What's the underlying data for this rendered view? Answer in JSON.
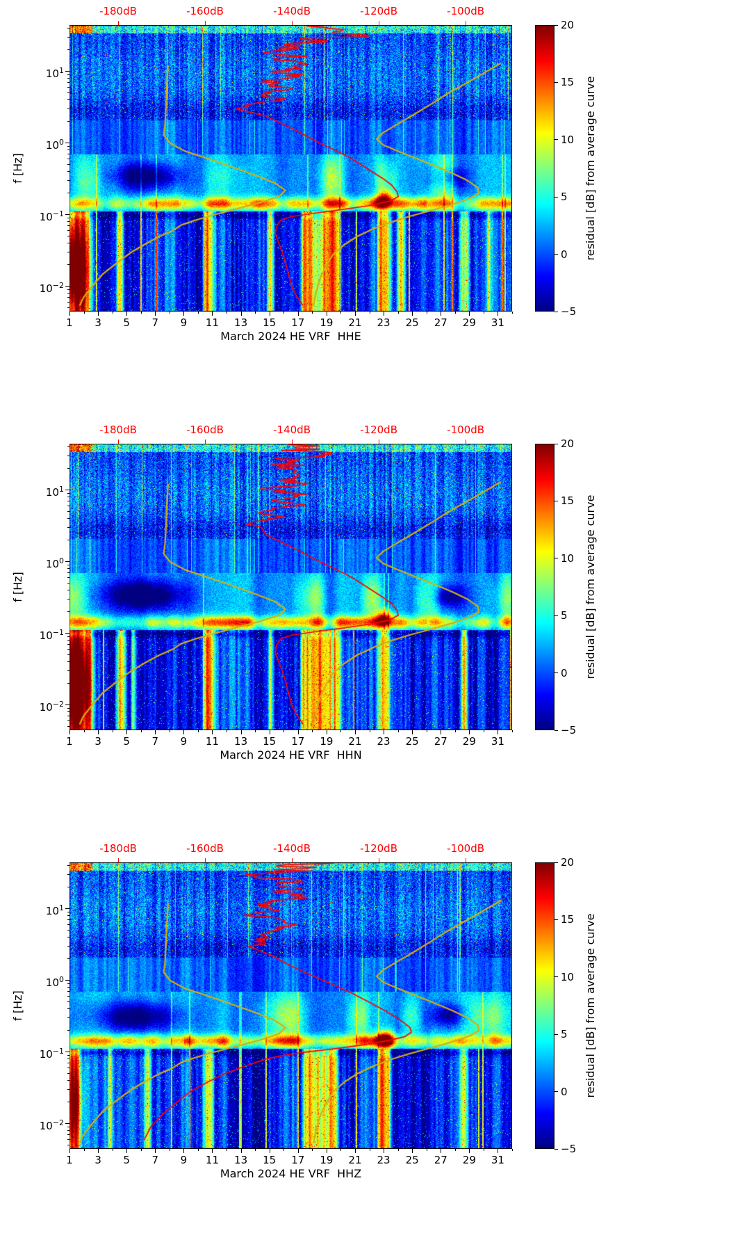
{
  "figure": {
    "month_label": "March 2024",
    "station_label": "HE VRF",
    "channels": [
      "HHE",
      "HHN",
      "HHZ"
    ],
    "background": "#ffffff"
  },
  "chart_data": [
    {
      "type": "heatmap",
      "channel": "HHE",
      "xlabel": "March 2024 HE VRF  HHE",
      "ylabel": "f [Hz]",
      "x_ticks": [
        1,
        3,
        5,
        7,
        9,
        11,
        13,
        15,
        17,
        19,
        21,
        23,
        25,
        27,
        29,
        31
      ],
      "x_range": [
        1,
        32
      ],
      "y_scale": "log",
      "y_range_hz": [
        0.0045,
        44.7
      ],
      "y_ticks": [
        {
          "f": 10,
          "label": "10^1"
        },
        {
          "f": 1,
          "label": "10^0"
        },
        {
          "f": 0.1,
          "label": "10^-1"
        },
        {
          "f": 0.01,
          "label": "10^-2"
        }
      ],
      "colormap": "jet",
      "colorbar": {
        "label": "residual [dB] from average curve",
        "ticks": [
          20,
          15,
          10,
          5,
          0,
          -5
        ],
        "range": [
          -5,
          20
        ]
      },
      "top_axis": {
        "labels": [
          "-180dB",
          "-160dB",
          "-140dB",
          "-120dB",
          "-100dB"
        ],
        "values_db": [
          -180,
          -160,
          -140,
          -120,
          -100
        ],
        "range_db": [
          -191.2,
          -89.3
        ],
        "color": "#ff0000"
      },
      "curves": {
        "average_psd": "avg_psd_horizontal",
        "noise_models": [
          "nlnm",
          "nhnm"
        ]
      },
      "features": {
        "noisy_day_ranges": [
          [
            0.6,
            2.5
          ],
          [
            4.3,
            4.8
          ],
          [
            10.4,
            11.1
          ],
          [
            14.9,
            15.2
          ],
          [
            17.2,
            19.9
          ],
          [
            22.6,
            23.5
          ],
          [
            24.0,
            24.4
          ],
          [
            28.3,
            28.9
          ],
          [
            30.2,
            30.5
          ]
        ],
        "microseism_blob": {
          "day": 23.1,
          "freq_hz": 0.16
        },
        "quiet_patch": {
          "days": [
            3,
            9.5
          ],
          "freq_hz": [
            0.2,
            0.6
          ]
        },
        "quiet_patch2": {
          "days": [
            26,
            29
          ],
          "freq_hz": [
            0.22,
            0.5
          ]
        },
        "left_blob": {
          "day": 1.3,
          "day_sigma": 0.9,
          "freq_hz": 0.018,
          "amp": 14
        },
        "description": "East component residual spectrogram: strong red low-frequency noise columns on days 1-2, 18-20, 23, 28-29; bright microseism band near 0.15 Hz with intense red spot on day 23; quiet dark-blue patch 0.2-0.6 Hz on days 3-9."
      }
    },
    {
      "type": "heatmap",
      "channel": "HHN",
      "xlabel": "March 2024 HE VRF  HHN",
      "ylabel": "f [Hz]",
      "x_ticks": [
        1,
        3,
        5,
        7,
        9,
        11,
        13,
        15,
        17,
        19,
        21,
        23,
        25,
        27,
        29,
        31
      ],
      "x_range": [
        1,
        32
      ],
      "y_scale": "log",
      "y_range_hz": [
        0.0045,
        44.7
      ],
      "y_ticks": [
        {
          "f": 10,
          "label": "10^1"
        },
        {
          "f": 1,
          "label": "10^0"
        },
        {
          "f": 0.1,
          "label": "10^-1"
        },
        {
          "f": 0.01,
          "label": "10^-2"
        }
      ],
      "colormap": "jet",
      "colorbar": {
        "label": "residual [dB] from average curve",
        "ticks": [
          20,
          15,
          10,
          5,
          0,
          -5
        ],
        "range": [
          -5,
          20
        ]
      },
      "top_axis": {
        "labels": [
          "-180dB",
          "-160dB",
          "-140dB",
          "-120dB",
          "-100dB"
        ],
        "values_db": [
          -180,
          -160,
          -140,
          -120,
          -100
        ],
        "range_db": [
          -191.2,
          -89.3
        ],
        "color": "#ff0000"
      },
      "curves": {
        "average_psd": "avg_psd_horizontal",
        "noise_models": [
          "nlnm",
          "nhnm"
        ]
      },
      "features": {
        "noisy_day_ranges": [
          [
            0.6,
            2.6
          ],
          [
            4.3,
            4.9
          ],
          [
            5.3,
            5.6
          ],
          [
            10.4,
            11.1
          ],
          [
            14.9,
            15.2
          ],
          [
            17.2,
            19.9
          ],
          [
            22.6,
            23.5
          ],
          [
            28.3,
            28.9
          ]
        ],
        "microseism_blob": {
          "day": 23.1,
          "freq_hz": 0.16
        },
        "quiet_patch": {
          "days": [
            3,
            9.5
          ],
          "freq_hz": [
            0.2,
            0.6
          ]
        },
        "quiet_patch2": {
          "days": [
            26,
            29
          ],
          "freq_hz": [
            0.22,
            0.5
          ]
        },
        "left_blob": {
          "day": 1.4,
          "day_sigma": 0.9,
          "freq_hz": 0.02,
          "amp": 14
        },
        "description": "North component residual spectrogram: red low-frequency noise columns on days 1-2, 4-5, 18-20, 23, 28-29; bright microseism band near 0.15 Hz with red spot on day 23; quiet dark-blue patch 0.2-0.6 Hz on days 3-9."
      }
    },
    {
      "type": "heatmap",
      "channel": "HHZ",
      "xlabel": "March 2024 HE VRF  HHZ",
      "ylabel": "f [Hz]",
      "x_ticks": [
        1,
        3,
        5,
        7,
        9,
        11,
        13,
        15,
        17,
        19,
        21,
        23,
        25,
        27,
        29,
        31
      ],
      "x_range": [
        1,
        32
      ],
      "y_scale": "log",
      "y_range_hz": [
        0.0045,
        44.7
      ],
      "y_ticks": [
        {
          "f": 10,
          "label": "10^1"
        },
        {
          "f": 1,
          "label": "10^0"
        },
        {
          "f": 0.1,
          "label": "10^-1"
        },
        {
          "f": 0.01,
          "label": "10^-2"
        }
      ],
      "colormap": "jet",
      "colorbar": {
        "label": "residual [dB] from average curve",
        "ticks": [
          20,
          15,
          10,
          5,
          0,
          -5
        ],
        "range": [
          -5,
          20
        ]
      },
      "top_axis": {
        "labels": [
          "-180dB",
          "-160dB",
          "-140dB",
          "-120dB",
          "-100dB"
        ],
        "values_db": [
          -180,
          -160,
          -140,
          -120,
          -100
        ],
        "range_db": [
          -191.2,
          -89.3
        ],
        "color": "#ff0000"
      },
      "curves": {
        "average_psd": "avg_psd_vertical",
        "noise_models": [
          "nlnm",
          "nhnm"
        ]
      },
      "features": {
        "noisy_day_ranges": [
          [
            0.7,
            1.8
          ],
          [
            3.7,
            3.9
          ],
          [
            6.3,
            6.6
          ],
          [
            10.4,
            11.0
          ],
          [
            17.3,
            19.8
          ],
          [
            22.6,
            23.5
          ],
          [
            28.4,
            28.8
          ]
        ],
        "microseism_blob": {
          "day": 23.1,
          "freq_hz": 0.15
        },
        "quiet_patch": {
          "days": [
            2.5,
            9
          ],
          "freq_hz": [
            0.18,
            0.55
          ]
        },
        "quiet_patch2": {
          "days": [
            26,
            29
          ],
          "freq_hz": [
            0.22,
            0.5
          ]
        },
        "left_blob": {
          "day": 1.3,
          "day_sigma": 0.6,
          "freq_hz": 0.02,
          "amp": 8
        },
        "description": "Vertical component residual spectrogram: quieter below 0.1 Hz than horizontals; average PSD curve drops toward -174 dB at long periods; red spot in microseism band on day 23; red noise columns on days 18-20 and 23."
      }
    }
  ],
  "curves": {
    "avg_psd_horizontal": {
      "color": "#ff0000",
      "units": [
        "Hz",
        "dB"
      ],
      "points": [
        [
          45,
          -136
        ],
        [
          40,
          -132
        ],
        [
          36,
          -139
        ],
        [
          32,
          -134
        ],
        [
          28,
          -141
        ],
        [
          24,
          -136
        ],
        [
          20,
          -142
        ],
        [
          17,
          -138
        ],
        [
          14,
          -142
        ],
        [
          12,
          -139
        ],
        [
          10,
          -144
        ],
        [
          8.5,
          -140
        ],
        [
          7.2,
          -145
        ],
        [
          6,
          -141
        ],
        [
          5,
          -146
        ],
        [
          4.2,
          -143
        ],
        [
          3.5,
          -147
        ],
        [
          3,
          -148.5
        ],
        [
          2.4,
          -146
        ],
        [
          1.9,
          -142.5
        ],
        [
          1.5,
          -139
        ],
        [
          1.2,
          -136
        ],
        [
          1,
          -133.5
        ],
        [
          0.8,
          -130
        ],
        [
          0.62,
          -126.5
        ],
        [
          0.5,
          -124
        ],
        [
          0.4,
          -121.5
        ],
        [
          0.32,
          -119
        ],
        [
          0.26,
          -117
        ],
        [
          0.21,
          -115.8
        ],
        [
          0.18,
          -115.5
        ],
        [
          0.155,
          -117.5
        ],
        [
          0.135,
          -122
        ],
        [
          0.12,
          -128
        ],
        [
          0.105,
          -135
        ],
        [
          0.095,
          -140
        ],
        [
          0.085,
          -142.5
        ],
        [
          0.07,
          -143.5
        ],
        [
          0.055,
          -143.8
        ],
        [
          0.04,
          -143
        ],
        [
          0.03,
          -142.2
        ],
        [
          0.022,
          -141.5
        ],
        [
          0.015,
          -140.8
        ],
        [
          0.01,
          -140
        ],
        [
          0.0075,
          -139
        ],
        [
          0.0055,
          -137.5
        ]
      ]
    },
    "avg_psd_vertical": {
      "color": "#ff0000",
      "units": [
        "Hz",
        "dB"
      ],
      "points": [
        [
          45,
          -136
        ],
        [
          38,
          -138
        ],
        [
          30,
          -140
        ],
        [
          24,
          -137
        ],
        [
          19,
          -142
        ],
        [
          15,
          -139
        ],
        [
          12,
          -143
        ],
        [
          9.5,
          -141
        ],
        [
          7.5,
          -144
        ],
        [
          6,
          -142
        ],
        [
          4.8,
          -146
        ],
        [
          3.8,
          -147
        ],
        [
          3,
          -148
        ],
        [
          2.3,
          -145
        ],
        [
          1.7,
          -141
        ],
        [
          1.3,
          -137
        ],
        [
          1.05,
          -133.5
        ],
        [
          0.85,
          -130
        ],
        [
          0.68,
          -126.5
        ],
        [
          0.55,
          -123.5
        ],
        [
          0.44,
          -120.5
        ],
        [
          0.35,
          -117.5
        ],
        [
          0.28,
          -115
        ],
        [
          0.22,
          -112.8
        ],
        [
          0.19,
          -112.5
        ],
        [
          0.165,
          -114
        ],
        [
          0.145,
          -118
        ],
        [
          0.128,
          -123
        ],
        [
          0.112,
          -130
        ],
        [
          0.1,
          -137
        ],
        [
          0.09,
          -142
        ],
        [
          0.08,
          -146
        ],
        [
          0.065,
          -150.5
        ],
        [
          0.05,
          -155.5
        ],
        [
          0.038,
          -159.5
        ],
        [
          0.028,
          -163.5
        ],
        [
          0.02,
          -166.5
        ],
        [
          0.014,
          -169.5
        ],
        [
          0.009,
          -172.5
        ],
        [
          0.006,
          -174
        ]
      ]
    },
    "nlnm": {
      "color": "#d2b013",
      "units": [
        "Hz",
        "dB"
      ],
      "points": [
        [
          12,
          -168.5
        ],
        [
          6,
          -168.8
        ],
        [
          3,
          -169
        ],
        [
          1.8,
          -169.2
        ],
        [
          1.3,
          -169.5
        ],
        [
          1,
          -168
        ],
        [
          0.77,
          -164.5
        ],
        [
          0.6,
          -159
        ],
        [
          0.45,
          -153
        ],
        [
          0.35,
          -148
        ],
        [
          0.28,
          -144
        ],
        [
          0.22,
          -141.5
        ],
        [
          0.18,
          -143
        ],
        [
          0.15,
          -147
        ],
        [
          0.12,
          -153
        ],
        [
          0.1,
          -158
        ],
        [
          0.085,
          -162
        ],
        [
          0.072,
          -165.5
        ],
        [
          0.06,
          -167.5
        ],
        [
          0.05,
          -170.5
        ],
        [
          0.04,
          -173.5
        ],
        [
          0.03,
          -177
        ],
        [
          0.022,
          -180
        ],
        [
          0.015,
          -183.5
        ],
        [
          0.01,
          -186
        ],
        [
          0.007,
          -188
        ],
        [
          0.0055,
          -188.8
        ]
      ]
    },
    "nhnm": {
      "color": "#d2b013",
      "units": [
        "Hz",
        "dB"
      ],
      "points": [
        [
          13,
          -92
        ],
        [
          8,
          -98
        ],
        [
          5,
          -104
        ],
        [
          3.5,
          -108
        ],
        [
          2.5,
          -112
        ],
        [
          1.8,
          -116
        ],
        [
          1.4,
          -119
        ],
        [
          1.15,
          -120.5
        ],
        [
          0.95,
          -119
        ],
        [
          0.75,
          -115
        ],
        [
          0.6,
          -111
        ],
        [
          0.48,
          -107
        ],
        [
          0.38,
          -103
        ],
        [
          0.3,
          -99.5
        ],
        [
          0.24,
          -97.2
        ],
        [
          0.2,
          -97
        ],
        [
          0.17,
          -99
        ],
        [
          0.14,
          -103
        ],
        [
          0.115,
          -108
        ],
        [
          0.095,
          -113
        ],
        [
          0.08,
          -117
        ],
        [
          0.065,
          -121
        ],
        [
          0.05,
          -125
        ],
        [
          0.038,
          -128
        ],
        [
          0.028,
          -130.5
        ],
        [
          0.02,
          -132
        ],
        [
          0.013,
          -133.5
        ],
        [
          0.008,
          -134.5
        ],
        [
          0.0055,
          -135
        ]
      ]
    }
  }
}
